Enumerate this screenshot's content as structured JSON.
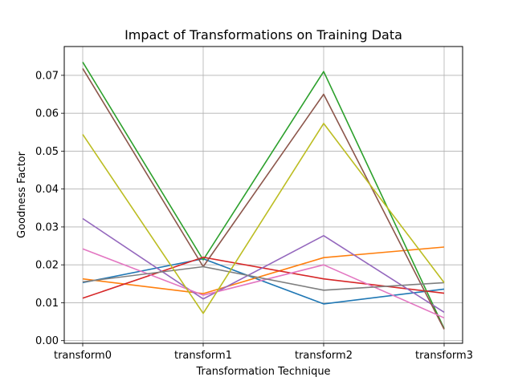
{
  "chart_data": {
    "type": "line",
    "title": "Impact of Transformations on Training Data",
    "xlabel": "Transformation Technique",
    "ylabel": "Goodness Factor",
    "categories": [
      "transform0",
      "transform1",
      "transform2",
      "transform3"
    ],
    "ylim": [
      -0.0007,
      0.0776
    ],
    "yticks": [
      0.0,
      0.01,
      0.02,
      0.03,
      0.04,
      0.05,
      0.06,
      0.07
    ],
    "ytick_labels": [
      "0.00",
      "0.01",
      "0.02",
      "0.03",
      "0.04",
      "0.05",
      "0.06",
      "0.07"
    ],
    "grid": true,
    "legend": "none",
    "series": [
      {
        "color": "#1f77b4",
        "values": [
          0.0153,
          0.0216,
          0.0097,
          0.0136
        ]
      },
      {
        "color": "#ff7f0e",
        "values": [
          0.0163,
          0.0124,
          0.0219,
          0.0247
        ]
      },
      {
        "color": "#2ca02c",
        "values": [
          0.0735,
          0.0213,
          0.071,
          0.0032
        ]
      },
      {
        "color": "#d62728",
        "values": [
          0.0112,
          0.022,
          0.0163,
          0.0125
        ]
      },
      {
        "color": "#9467bd",
        "values": [
          0.0322,
          0.011,
          0.0277,
          0.0075
        ]
      },
      {
        "color": "#8c564b",
        "values": [
          0.0718,
          0.0195,
          0.065,
          0.003
        ]
      },
      {
        "color": "#e377c2",
        "values": [
          0.0242,
          0.012,
          0.02,
          0.006
        ]
      },
      {
        "color": "#7f7f7f",
        "values": [
          0.0155,
          0.0195,
          0.0133,
          0.0153
        ]
      },
      {
        "color": "#bcbd22",
        "values": [
          0.0544,
          0.0072,
          0.0573,
          0.0153
        ]
      }
    ]
  }
}
